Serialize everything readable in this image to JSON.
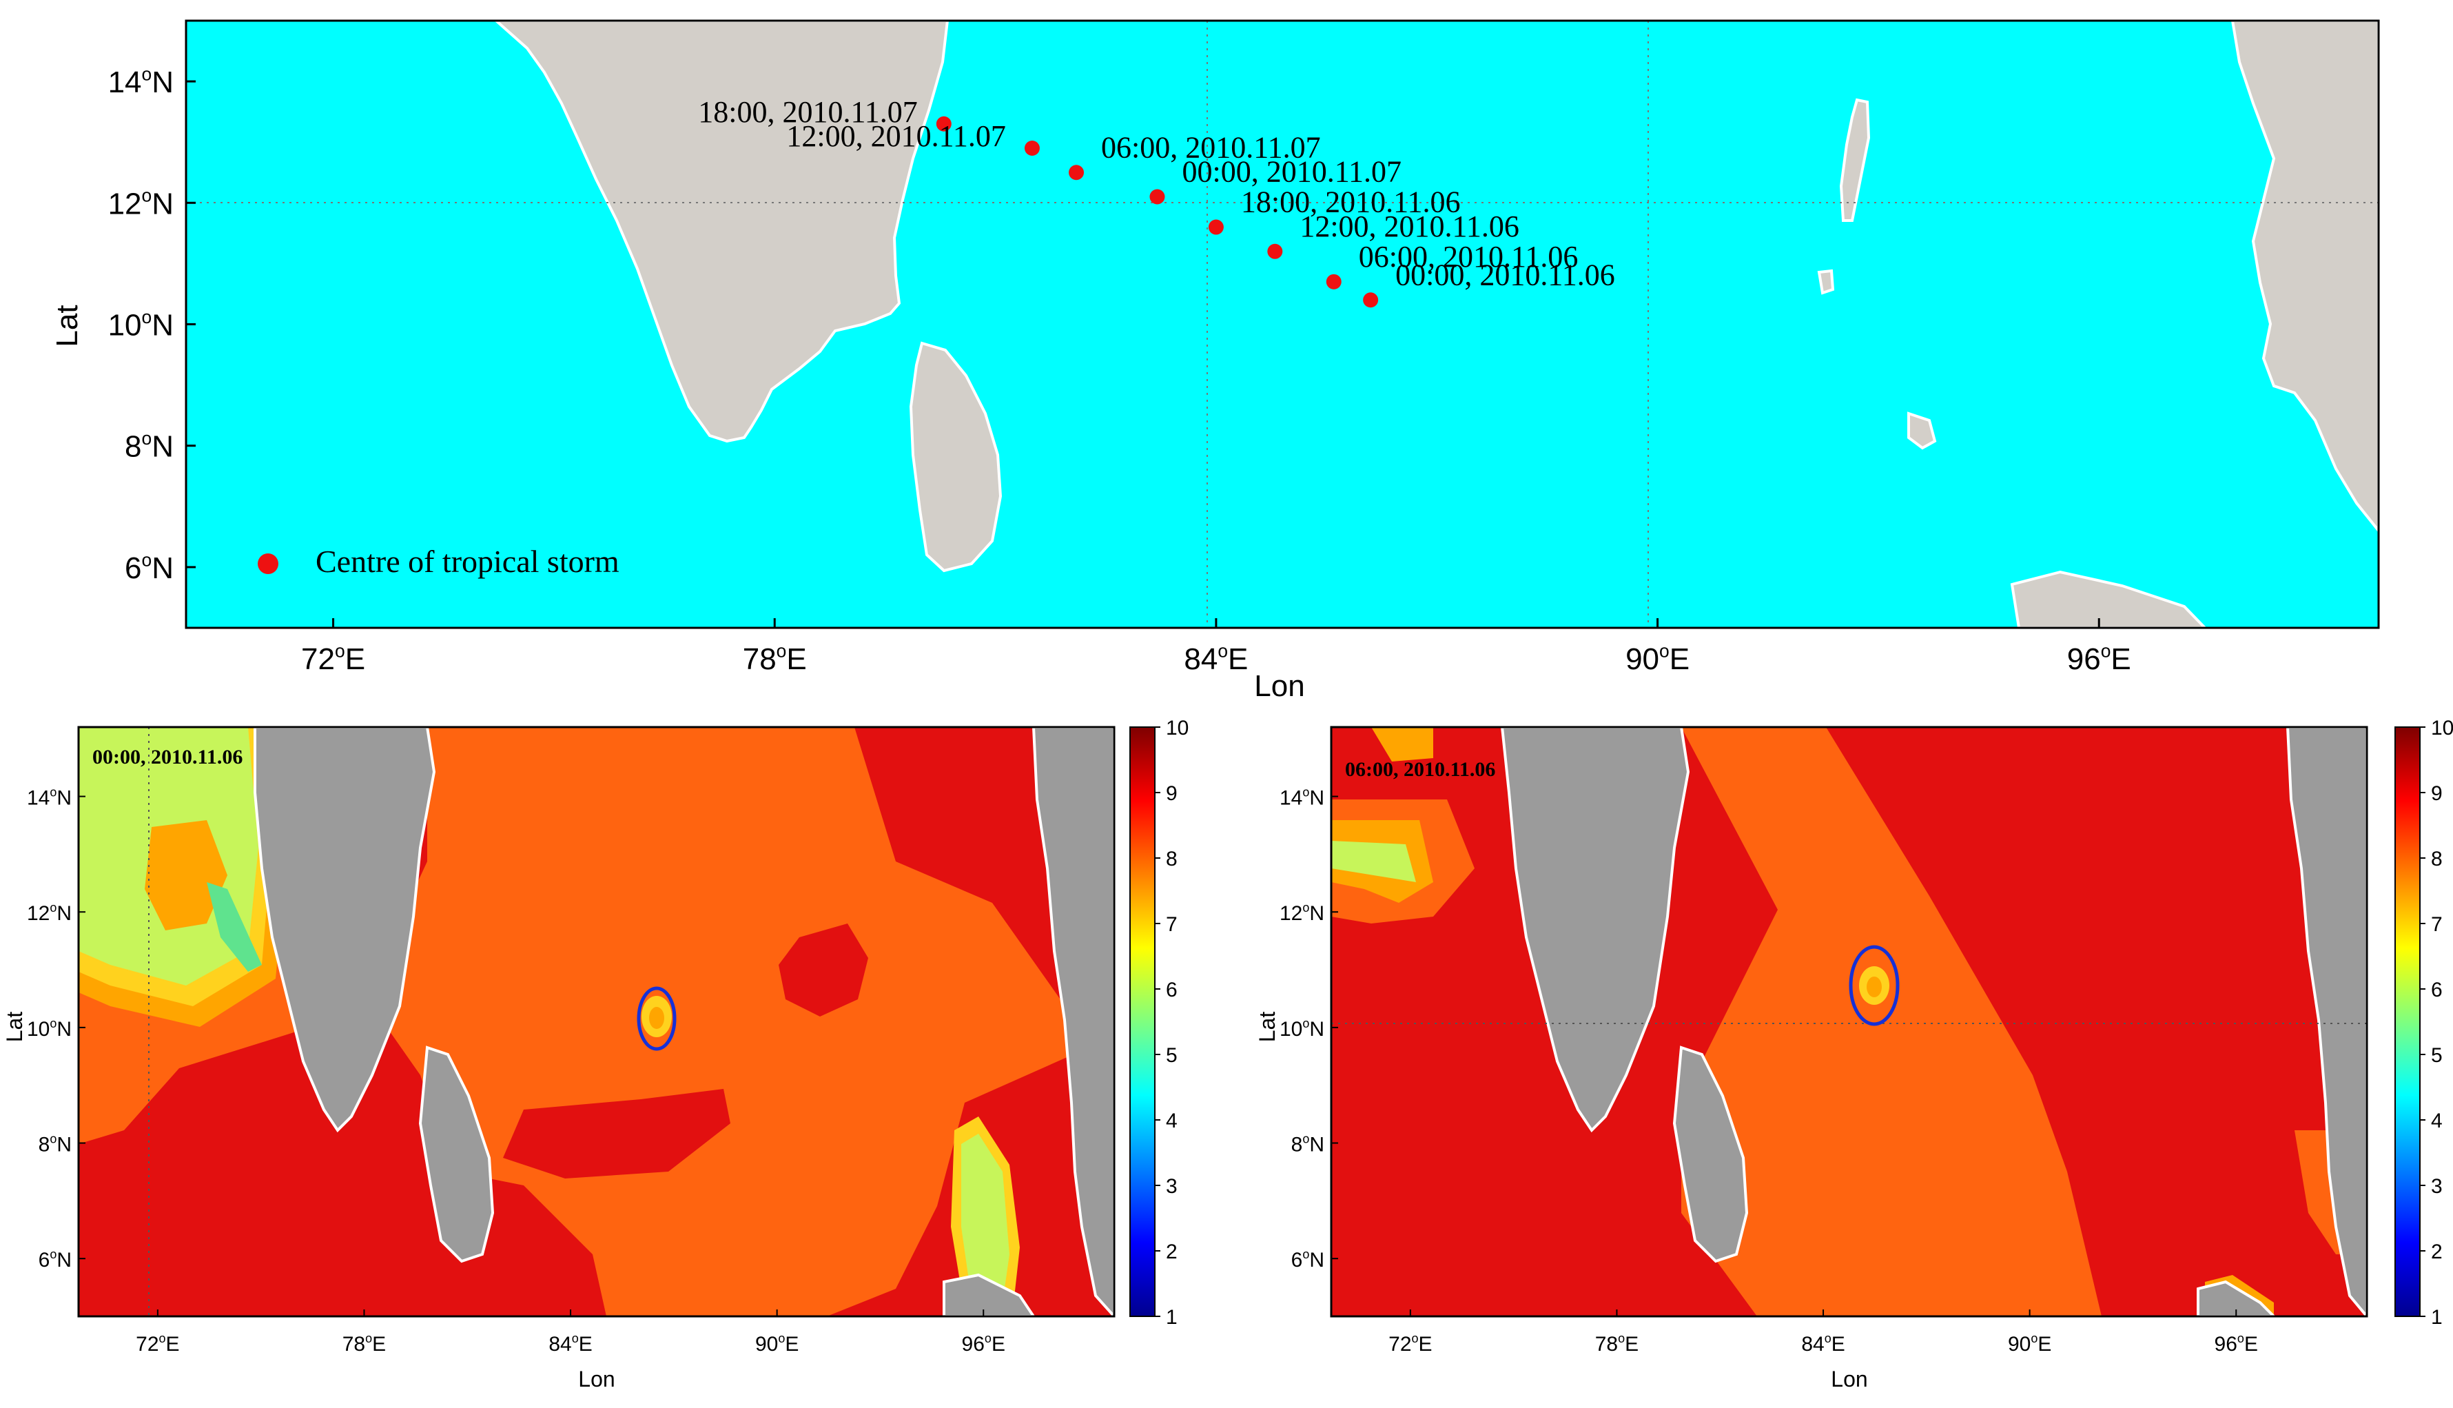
{
  "colors": {
    "ocean": "#00ffff",
    "land": "#d3cfc9",
    "land_grey": "#9b9b9b",
    "storm_dot": "#ee1111",
    "ring": "#1530d8",
    "coast_white": "#ffffff",
    "field_red": "#e21010",
    "field_orange": "#ff6410",
    "field_amber": "#ffa500",
    "field_yellow": "#ffd21e",
    "field_lime": "#c7f55a",
    "field_green": "#5fe38e"
  },
  "top_map": {
    "ylabel": "Lat",
    "xlabel": "Lon",
    "lat_ticks": [
      "14°N",
      "12°N",
      "10°N",
      "8°N",
      "6°N"
    ],
    "lon_ticks": [
      "72°E",
      "78°E",
      "84°E",
      "90°E",
      "96°E"
    ],
    "legend_label": "Centre of tropical storm",
    "track": [
      {
        "time": "18:00, 2010.11.07",
        "lon": 80.3,
        "lat": 13.3
      },
      {
        "time": "12:00, 2010.11.07",
        "lon": 81.5,
        "lat": 12.9
      },
      {
        "time": "06:00, 2010.11.07",
        "lon": 82.1,
        "lat": 12.5
      },
      {
        "time": "00:00, 2010.11.07",
        "lon": 83.2,
        "lat": 12.1
      },
      {
        "time": "18:00, 2010.11.06",
        "lon": 84.0,
        "lat": 11.6
      },
      {
        "time": "12:00, 2010.11.06",
        "lon": 84.8,
        "lat": 11.2
      },
      {
        "time": "06:00, 2010.11.06",
        "lon": 85.6,
        "lat": 10.7
      },
      {
        "time": "00:00, 2010.11.06",
        "lon": 86.1,
        "lat": 10.4
      }
    ]
  },
  "panels": [
    {
      "timestamp": "00:00, 2010.11.06",
      "ylabel": "Lat",
      "xlabel": "Lon",
      "lat_ticks": [
        "14°N",
        "12°N",
        "10°N",
        "8°N",
        "6°N"
      ],
      "lon_ticks": [
        "72°E",
        "78°E",
        "84°E",
        "90°E",
        "96°E"
      ],
      "colorbar_ticks": [
        "10",
        "9",
        "8",
        "7",
        "6",
        "5",
        "4",
        "3",
        "2",
        "1"
      ]
    },
    {
      "timestamp": "06:00, 2010.11.06",
      "ylabel": "Lat",
      "xlabel": "Lon",
      "lat_ticks": [
        "14°N",
        "12°N",
        "10°N",
        "8°N",
        "6°N"
      ],
      "lon_ticks": [
        "72°E",
        "78°E",
        "84°E",
        "90°E",
        "96°E"
      ],
      "colorbar_ticks": [
        "10",
        "9",
        "8",
        "7",
        "6",
        "5",
        "4",
        "3",
        "2",
        "1"
      ]
    }
  ]
}
